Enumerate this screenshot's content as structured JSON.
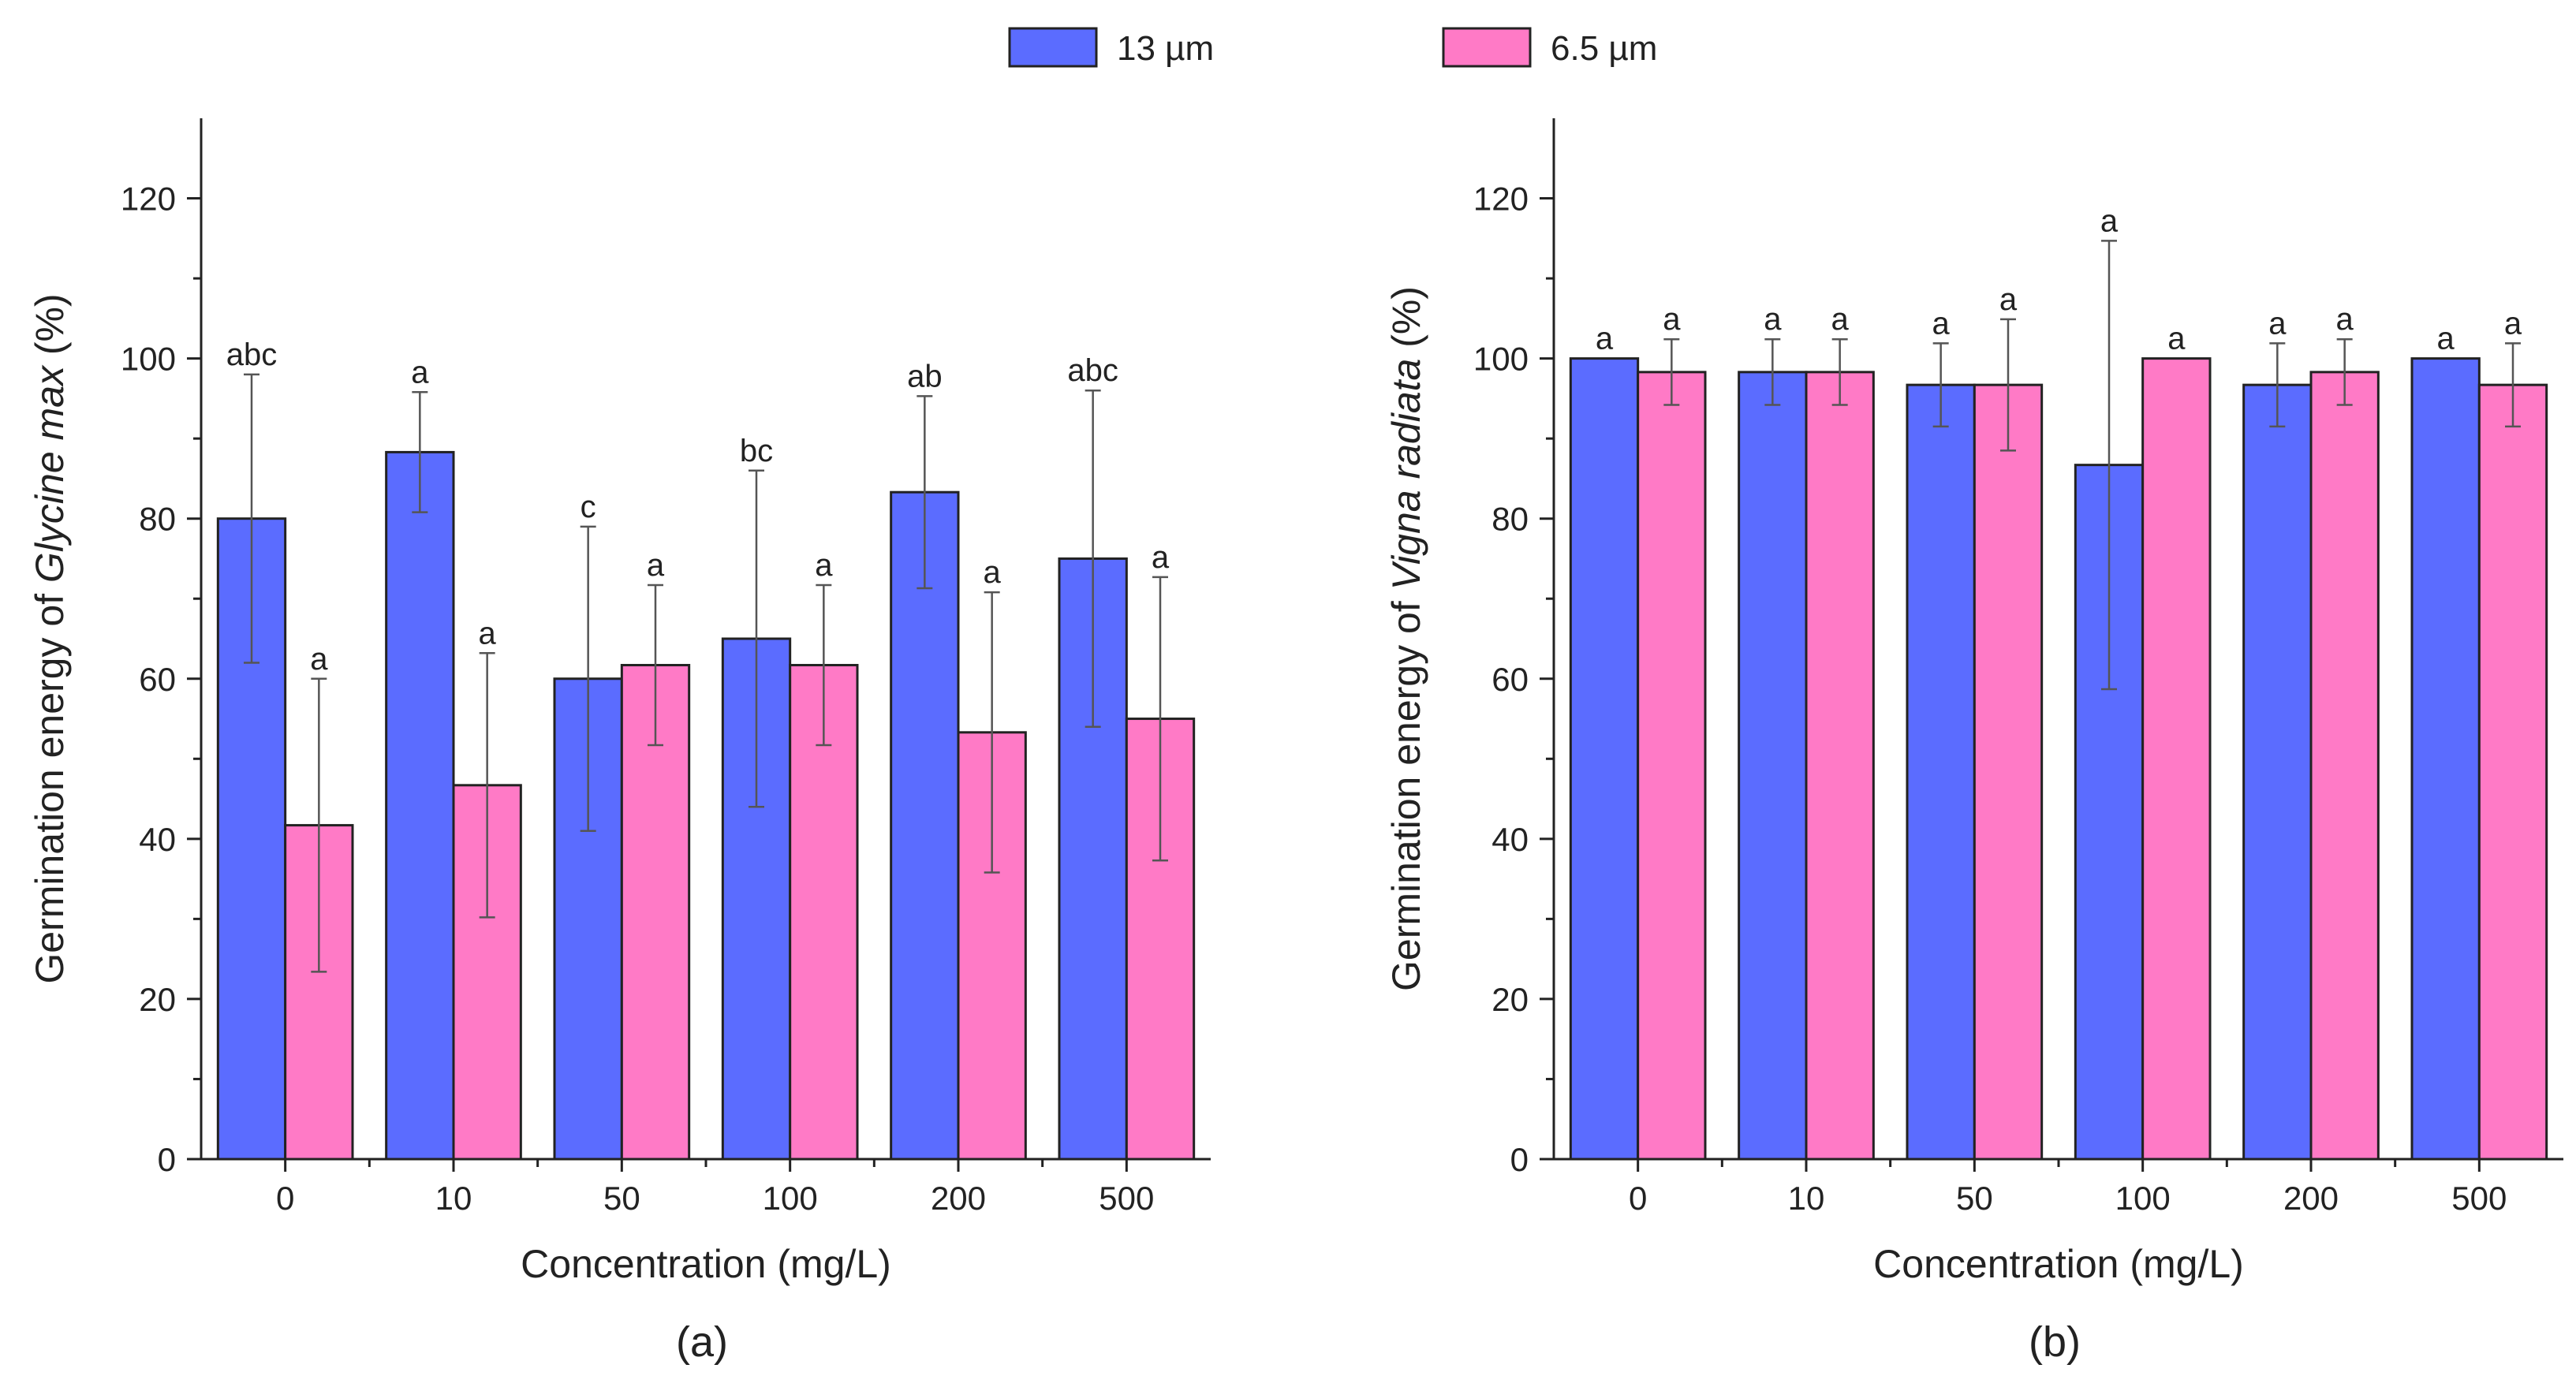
{
  "legend": [
    {
      "name": "13 µm",
      "color": "#5b6cff"
    },
    {
      "name": "6.5 µm",
      "color": "#ff7ac6"
    }
  ],
  "chart_data": [
    {
      "type": "bar",
      "panel_label": "(a)",
      "categories": [
        "0",
        "10",
        "50",
        "100",
        "200",
        "500"
      ],
      "xlabel": "Concentration (mg/L)",
      "ylabel_parts": [
        {
          "text": "Germination energy of ",
          "italic": false
        },
        {
          "text": "Glycine max",
          "italic": true
        },
        {
          "text": " (%)",
          "italic": false
        }
      ],
      "ylim": [
        0,
        130
      ],
      "yticks": [
        "0",
        "20",
        "40",
        "60",
        "80",
        "100",
        "120"
      ],
      "series": [
        {
          "name": "13 µm",
          "color": "#5b6cff",
          "values": [
            80,
            88.3,
            60,
            65,
            83.3,
            75
          ],
          "errors": [
            18,
            7.5,
            19,
            21,
            12,
            21
          ],
          "letters": [
            "abc",
            "a",
            "c",
            "bc",
            "ab",
            "abc"
          ]
        },
        {
          "name": "6.5 µm",
          "color": "#ff7ac6",
          "values": [
            41.7,
            46.7,
            61.7,
            61.7,
            53.3,
            55
          ],
          "errors": [
            18.3,
            16.5,
            10,
            10,
            17.5,
            17.7
          ],
          "letters": [
            "a",
            "a",
            "a",
            "a",
            "a",
            "a"
          ]
        }
      ]
    },
    {
      "type": "bar",
      "panel_label": "(b)",
      "categories": [
        "0",
        "10",
        "50",
        "100",
        "200",
        "500"
      ],
      "xlabel": "Concentration (mg/L)",
      "ylabel_parts": [
        {
          "text": "Germination energy of ",
          "italic": false
        },
        {
          "text": "Vigna radiata",
          "italic": true
        },
        {
          "text": " (%)",
          "italic": false
        }
      ],
      "ylim": [
        0,
        130
      ],
      "yticks": [
        "0",
        "20",
        "40",
        "60",
        "80",
        "100",
        "120"
      ],
      "series": [
        {
          "name": "13 µm",
          "color": "#5b6cff",
          "values": [
            100,
            98.3,
            96.7,
            86.7,
            96.7,
            100
          ],
          "errors": [
            0,
            4.1,
            5.2,
            28,
            5.2,
            0
          ],
          "letters": [
            "a",
            "a",
            "a",
            "a",
            "a",
            "a"
          ]
        },
        {
          "name": "6.5 µm",
          "color": "#ff7ac6",
          "values": [
            98.3,
            98.3,
            96.7,
            100,
            98.3,
            96.7
          ],
          "errors": [
            4.1,
            4.1,
            8.2,
            0,
            4.1,
            5.2
          ],
          "letters": [
            "a",
            "a",
            "a",
            "a",
            "a",
            "a"
          ]
        }
      ]
    }
  ]
}
